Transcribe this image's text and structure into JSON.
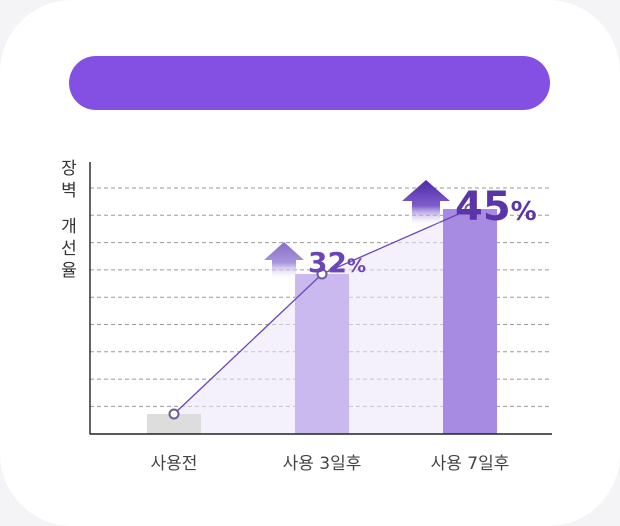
{
  "colors": {
    "banner": "#8450e3",
    "bar_before": "#dddddd",
    "bar_3day": "#c9b9ef",
    "bar_7day": "#a78ae2",
    "accent": "#6a45b8",
    "arrow_light": "#9278d0",
    "arrow_dark": "#5a30b0"
  },
  "ylabel_chars": [
    "장",
    "벽",
    "",
    "개",
    "선",
    "율"
  ],
  "chart_data": {
    "type": "bar",
    "ylabel": "장벽 개선율",
    "categories": [
      "사용전",
      "사용 3일후",
      "사용 7일후"
    ],
    "values": [
      4,
      32,
      45
    ],
    "ylim": [
      0,
      50
    ],
    "grid": true,
    "overlay_line": true,
    "annotations": [
      {
        "category": "사용 3일후",
        "value": "32",
        "unit": "%"
      },
      {
        "category": "사용 7일후",
        "value": "45",
        "unit": "%"
      }
    ]
  }
}
